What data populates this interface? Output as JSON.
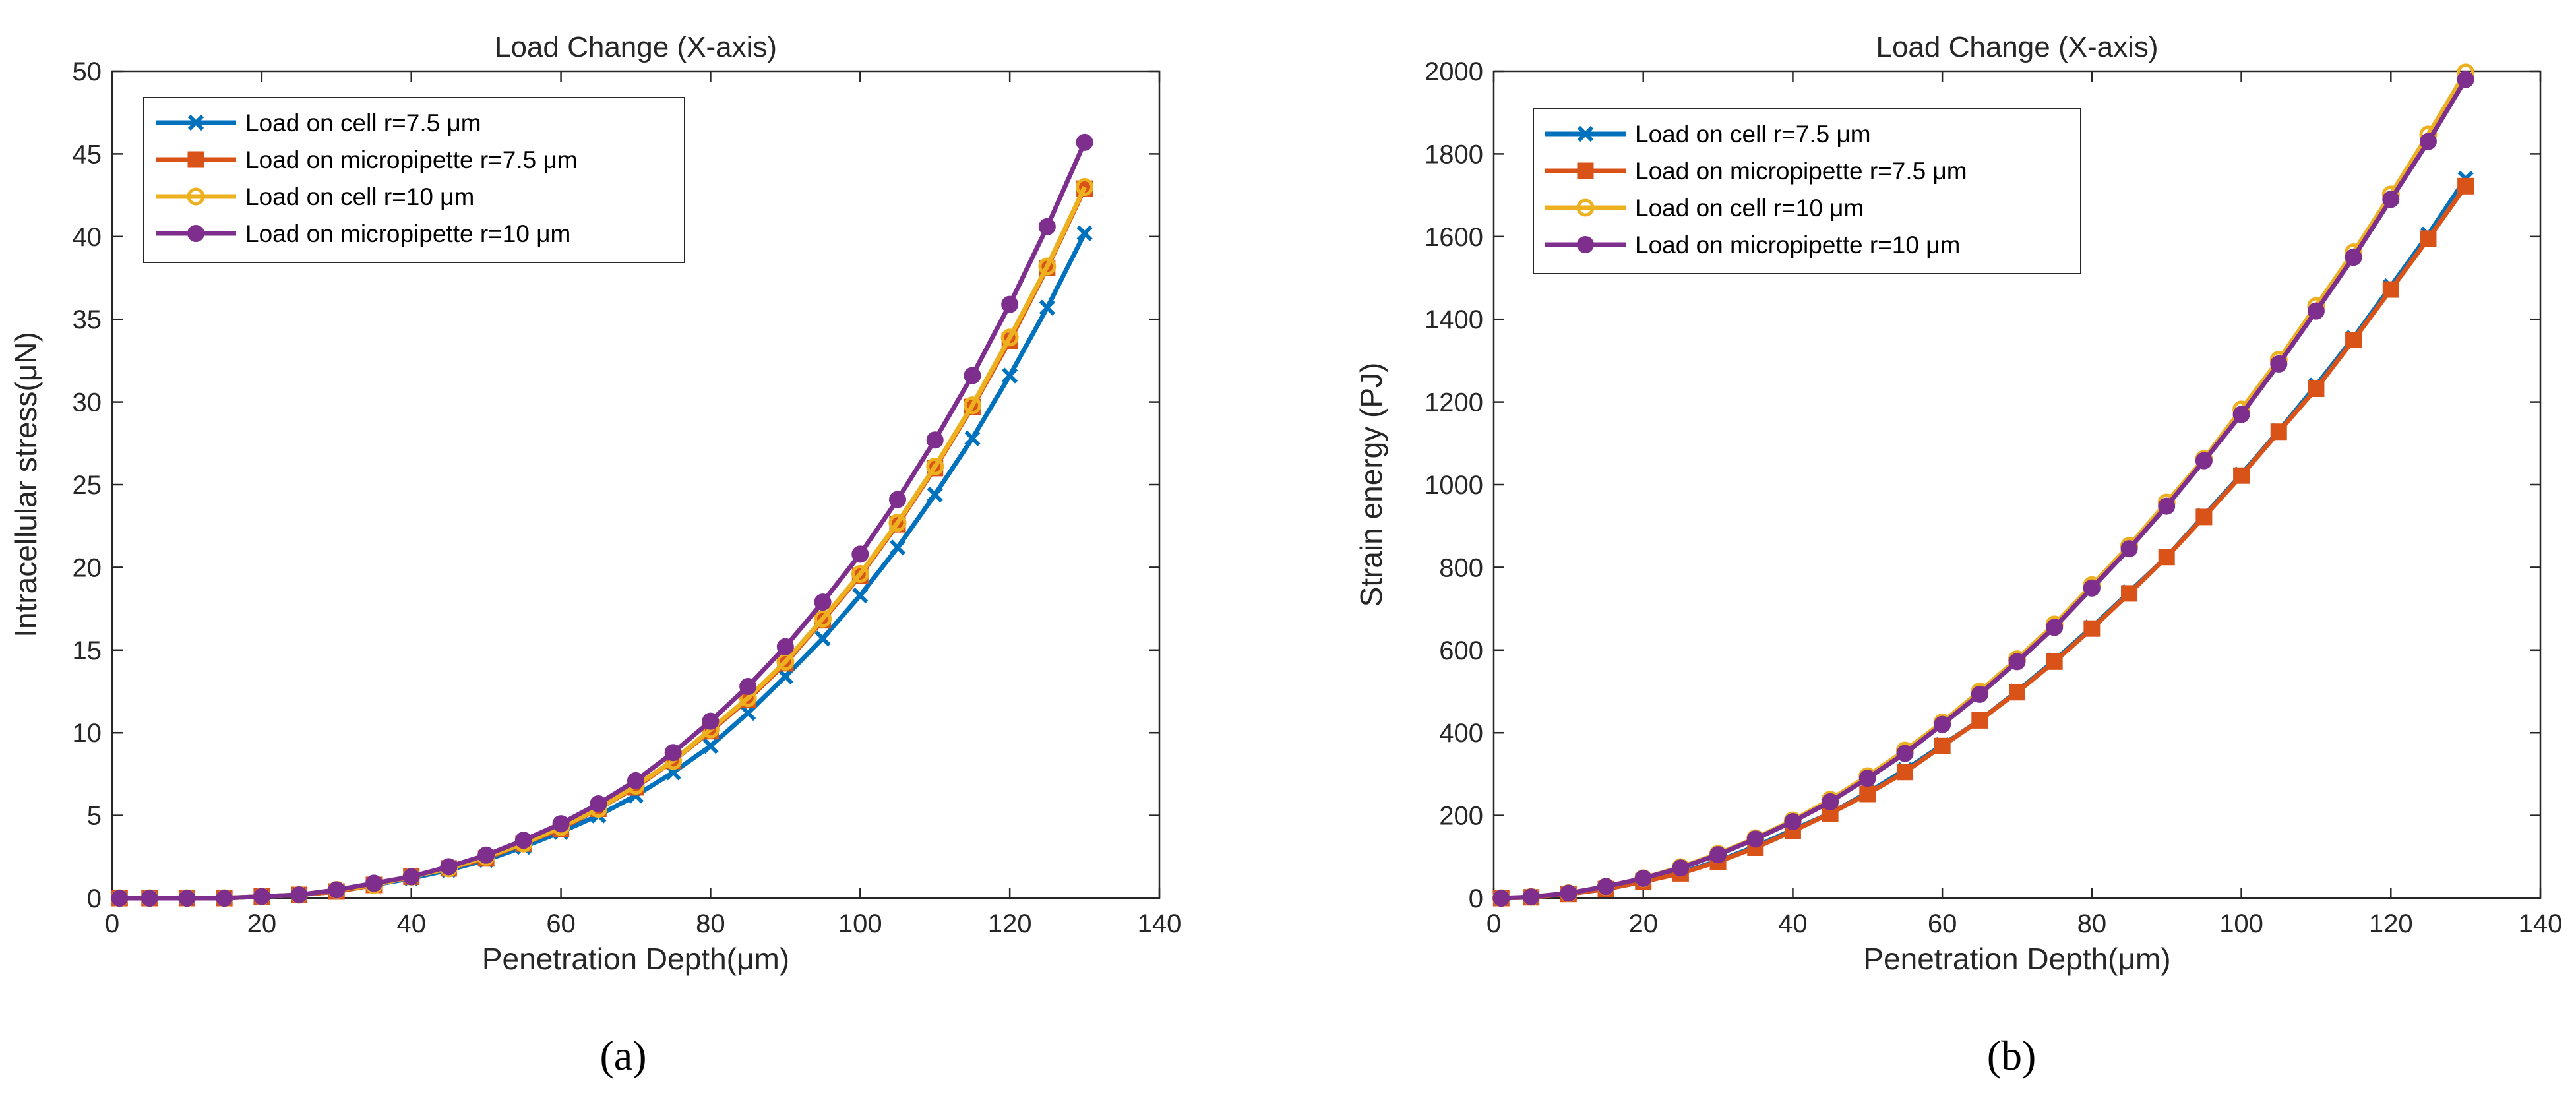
{
  "figure": {
    "panel_labels": [
      "(a)",
      "(b)"
    ]
  },
  "chart_data": [
    {
      "type": "line",
      "title": "Load Change (X-axis)",
      "xlabel": "Penetration Depth(μm)",
      "ylabel": "Intracellular stress(μN)",
      "xlim": [
        0,
        140
      ],
      "ylim": [
        0,
        50
      ],
      "xticks": [
        0,
        20,
        40,
        60,
        80,
        100,
        120,
        140
      ],
      "yticks": [
        0,
        5,
        10,
        15,
        20,
        25,
        30,
        35,
        40,
        45,
        50
      ],
      "grid": false,
      "legend_position": "top-left",
      "x": [
        1,
        5,
        10,
        15,
        20,
        25,
        30,
        35,
        40,
        45,
        50,
        55,
        60,
        65,
        70,
        75,
        80,
        85,
        90,
        95,
        100,
        105,
        110,
        115,
        120,
        125,
        130
      ],
      "series": [
        {
          "name": "Load on cell r=7.5 μm",
          "color": "#0072BD",
          "marker": "x",
          "values": [
            0,
            0,
            0,
            0,
            0.1,
            0.2,
            0.4,
            0.8,
            1.2,
            1.7,
            2.3,
            3.1,
            4.0,
            5.0,
            6.2,
            7.6,
            9.2,
            11.2,
            13.4,
            15.7,
            18.3,
            21.2,
            24.4,
            27.8,
            31.6,
            35.7,
            40.2
          ]
        },
        {
          "name": "Load on micropipette r=7.5 μm",
          "color": "#D95319",
          "marker": "square",
          "values": [
            0,
            0,
            0,
            0,
            0.1,
            0.2,
            0.4,
            0.8,
            1.3,
            1.8,
            2.4,
            3.3,
            4.2,
            5.4,
            6.7,
            8.3,
            10.1,
            12.0,
            14.2,
            16.8,
            19.5,
            22.6,
            26.0,
            29.7,
            33.7,
            38.1,
            42.9
          ]
        },
        {
          "name": "Load on cell r=10 μm",
          "color": "#EDB120",
          "marker": "circle",
          "values": [
            0,
            0,
            0,
            0,
            0.1,
            0.2,
            0.5,
            0.8,
            1.3,
            1.8,
            2.5,
            3.3,
            4.3,
            5.4,
            6.8,
            8.3,
            10.2,
            12.1,
            14.3,
            16.9,
            19.6,
            22.7,
            26.1,
            29.8,
            33.9,
            38.2,
            43.0
          ]
        },
        {
          "name": "Load on micropipette r=10 μm",
          "color": "#7E2F8E",
          "marker": "filled-circle",
          "values": [
            0,
            0,
            0,
            0,
            0.1,
            0.2,
            0.5,
            0.9,
            1.3,
            1.9,
            2.6,
            3.5,
            4.5,
            5.7,
            7.1,
            8.8,
            10.7,
            12.8,
            15.2,
            17.9,
            20.8,
            24.1,
            27.7,
            31.6,
            35.9,
            40.6,
            45.7
          ]
        }
      ]
    },
    {
      "type": "line",
      "title": "Load Change (X-axis)",
      "xlabel": "Penetration Depth(μm)",
      "ylabel": "Strain energy (PJ)",
      "xlim": [
        0,
        140
      ],
      "ylim": [
        0,
        2000
      ],
      "xticks": [
        0,
        20,
        40,
        60,
        80,
        100,
        120,
        140
      ],
      "yticks": [
        0,
        200,
        400,
        600,
        800,
        1000,
        1200,
        1400,
        1600,
        1800,
        2000
      ],
      "grid": false,
      "legend_position": "top-left",
      "x": [
        1,
        5,
        10,
        15,
        20,
        25,
        30,
        35,
        40,
        45,
        50,
        55,
        60,
        65,
        70,
        75,
        80,
        85,
        90,
        95,
        100,
        105,
        110,
        115,
        120,
        125,
        130
      ],
      "series": [
        {
          "name": "Load on cell r=7.5 μm",
          "color": "#0072BD",
          "marker": "x",
          "values": [
            0,
            2,
            10,
            22,
            40,
            62,
            90,
            125,
            165,
            205,
            255,
            310,
            370,
            430,
            500,
            575,
            655,
            740,
            825,
            925,
            1025,
            1130,
            1240,
            1355,
            1480,
            1605,
            1740
          ]
        },
        {
          "name": "Load on micropipette r=7.5 μm",
          "color": "#D95319",
          "marker": "square",
          "values": [
            0,
            2,
            10,
            22,
            40,
            60,
            88,
            122,
            162,
            205,
            252,
            305,
            368,
            430,
            498,
            572,
            652,
            737,
            825,
            922,
            1022,
            1128,
            1232,
            1350,
            1472,
            1595,
            1722
          ]
        },
        {
          "name": "Load on cell r=10 μm",
          "color": "#EDB120",
          "marker": "circle",
          "values": [
            0,
            3,
            12,
            28,
            48,
            75,
            107,
            145,
            188,
            238,
            295,
            357,
            425,
            500,
            578,
            662,
            757,
            852,
            957,
            1062,
            1182,
            1302,
            1432,
            1562,
            1702,
            1847,
            1997
          ]
        },
        {
          "name": "Load on micropipette r=10 μm",
          "color": "#7E2F8E",
          "marker": "filled-circle",
          "values": [
            0,
            3,
            12,
            28,
            48,
            73,
            105,
            143,
            185,
            233,
            290,
            350,
            420,
            493,
            572,
            655,
            750,
            845,
            948,
            1058,
            1170,
            1292,
            1420,
            1550,
            1690,
            1830,
            1980
          ]
        }
      ]
    }
  ]
}
